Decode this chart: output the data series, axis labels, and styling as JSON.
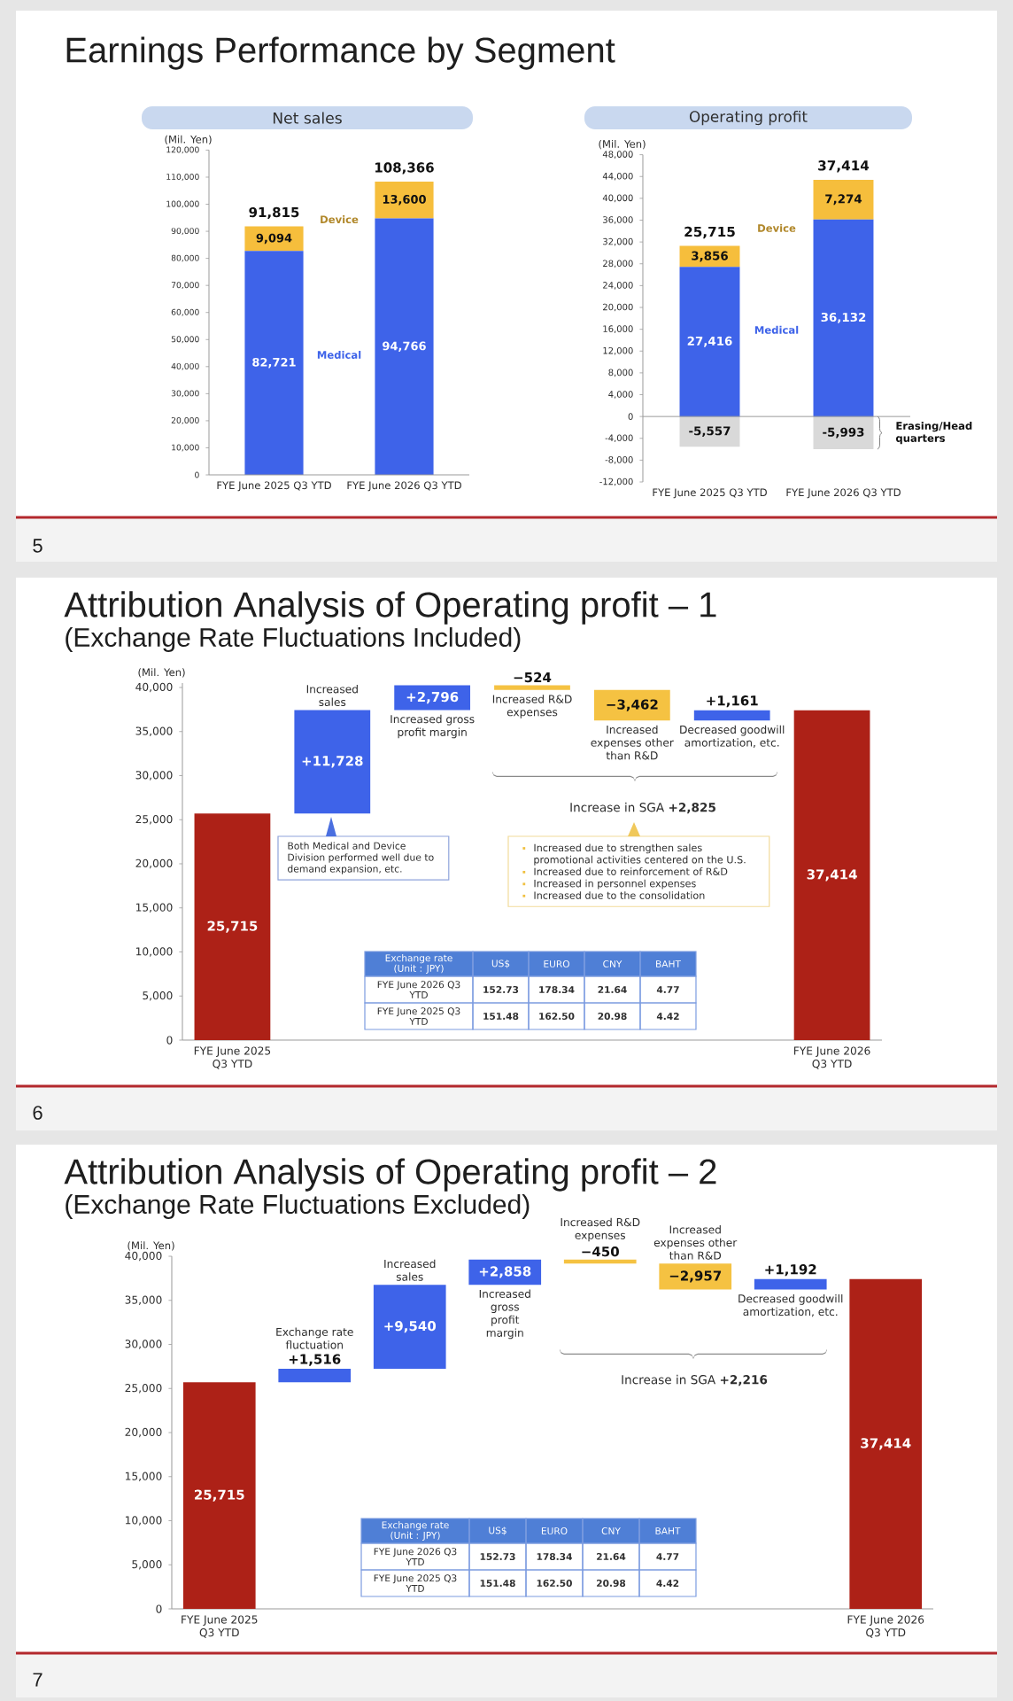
{
  "chart_data": [
    {
      "type": "bar",
      "stacked": true,
      "title": "Net sales",
      "ylabel": "(Mil. Yen)",
      "categories": [
        "FYE June 2025 Q3 YTD",
        "FYE June 2026 Q3 YTD"
      ],
      "series": [
        {
          "name": "Medical",
          "color": "#3e63e9",
          "values": [
            82721,
            94766
          ],
          "value_labels": [
            "82,721",
            "94,766"
          ]
        },
        {
          "name": "Device",
          "color": "#f6be3c",
          "values": [
            9094,
            13600
          ],
          "value_labels": [
            "9,094",
            "13,600"
          ]
        }
      ],
      "totals": [
        "91,815",
        "108,366"
      ],
      "ylim": [
        0,
        120000
      ],
      "yticks": [
        0,
        {
          "value": 10000,
          "label": "10,000"
        },
        {
          "value": 20000,
          "label": "20,000"
        },
        {
          "value": 30000,
          "label": "30,000"
        },
        {
          "value": 40000,
          "label": "40,000"
        },
        {
          "value": 50000,
          "label": "50,000"
        },
        {
          "value": 60000,
          "label": "60,000"
        },
        {
          "value": 70000,
          "label": "70,000"
        },
        {
          "value": 80000,
          "label": "80,000"
        },
        {
          "value": 90000,
          "label": "90,000"
        },
        {
          "value": 100000,
          "label": "100,000"
        },
        {
          "value": 110000,
          "label": "110,000"
        },
        {
          "value": 120000,
          "label": "120,000"
        }
      ],
      "annotations": [
        "Earnings Performance by Segment",
        "5"
      ]
    },
    {
      "type": "bar",
      "stacked": true,
      "title": "Operating profit",
      "ylabel": "(Mil. Yen)",
      "categories": [
        "FYE June 2025 Q3 YTD",
        "FYE June 2026 Q3 YTD"
      ],
      "series": [
        {
          "name": "Medical",
          "color": "#3e63e9",
          "values": [
            27416,
            36132
          ],
          "value_labels": [
            "27,416",
            "36,132"
          ]
        },
        {
          "name": "Device",
          "color": "#f6be3c",
          "values": [
            3856,
            7274
          ],
          "value_labels": [
            "3,856",
            "7,274"
          ]
        },
        {
          "name": "Erasing/Head quarters",
          "color": "#d9d9d9",
          "values": [
            -5557,
            -5993
          ],
          "value_labels": [
            "-5,557",
            "-5,993"
          ]
        }
      ],
      "totals": [
        "25,715",
        "37,414"
      ],
      "ylim": [
        -12000,
        48000
      ],
      "yticks": [
        {
          "value": -12000,
          "label": "-12,000"
        },
        {
          "value": -8000,
          "label": "-8,000"
        },
        {
          "value": -4000,
          "label": "-4,000"
        },
        0,
        {
          "value": 4000,
          "label": "4,000"
        },
        {
          "value": 8000,
          "label": "8,000"
        },
        {
          "value": 12000,
          "label": "12,000"
        },
        {
          "value": 16000,
          "label": "16,000"
        },
        {
          "value": 20000,
          "label": "20,000"
        },
        {
          "value": 24000,
          "label": "24,000"
        },
        {
          "value": 28000,
          "label": "28,000"
        },
        {
          "value": 32000,
          "label": "32,000"
        },
        {
          "value": 36000,
          "label": "36,000"
        },
        {
          "value": 40000,
          "label": "40,000"
        },
        {
          "value": 44000,
          "label": "44,000"
        },
        {
          "value": 48000,
          "label": "48,000"
        }
      ]
    },
    {
      "type": "bar",
      "title": "Attribution Analysis of Operating profit – 1",
      "subtitle": "(Exchange Rate Fluctuations Included)",
      "ylabel": "(Mil. Yen)",
      "categories": [
        "FYE June 2025 Q3 YTD",
        "Increased sales",
        "Increased gross profit margin",
        "Increased R&D expenses",
        "Increased expenses other than R&D",
        "Decreased goodwill amortization, etc.",
        "FYE June 2026 Q3 YTD"
      ],
      "values": [
        25715,
        11728,
        2796,
        -524,
        -3462,
        1161,
        37414
      ],
      "base": [
        0,
        25715,
        37443,
        40239,
        39715,
        36253,
        0
      ],
      "colors": [
        "#ad2117",
        "#3e63e9",
        "#3e63e9",
        "#f5c242",
        "#f5c242",
        "#3e63e9",
        "#ad2117"
      ],
      "value_labels": [
        "25,715",
        "+11,728",
        "+2,796",
        "−524",
        "−3,462",
        "+1,161",
        "37,414"
      ],
      "ylim": [
        0,
        40500
      ],
      "yticks": [
        0,
        {
          "value": 5000,
          "label": "5,000"
        },
        {
          "value": 10000,
          "label": "10,000"
        },
        {
          "value": 15000,
          "label": "15,000"
        },
        {
          "value": 20000,
          "label": "20,000"
        },
        {
          "value": 25000,
          "label": "25,000"
        },
        {
          "value": 30000,
          "label": "30,000"
        },
        {
          "value": 35000,
          "label": "35,000"
        },
        {
          "value": 40000,
          "label": "40,000"
        }
      ],
      "annotations": [
        "6",
        "Both Medical and Device Division performed well due to demand expansion, etc.",
        "Increase in SGA **+2,825**",
        "Increased due to strengthen sales promotional activities centered on the U.S.",
        "Increased due to reinforcement of R&D",
        "Increased in personnel expenses",
        "Increased due to the consolidation",
        "Exchange rate (Unit : JPY)",
        "US$",
        "EURO",
        "CNY",
        "BAHT",
        "FYE June 2026 Q3 YTD",
        "152.73",
        "178.34",
        "21.64",
        "4.77",
        "FYE June 2025 Q3 YTD",
        "151.48",
        "162.50",
        "20.98",
        "4.42"
      ]
    },
    {
      "type": "bar",
      "title": "Attribution Analysis of Operating profit – 2",
      "subtitle": "(Exchange Rate Fluctuations Excluded)",
      "ylabel": "(Mil. Yen)",
      "categories": [
        "FYE June 2025 Q3 YTD",
        "Exchange rate fluctuation",
        "Increased sales",
        "Increased gross profit margin",
        "Increased R&D expenses",
        "Increased expenses other than R&D",
        "Decreased goodwill amortization, etc.",
        "FYE June 2026 Q3 YTD"
      ],
      "values": [
        25715,
        1516,
        9540,
        2858,
        -450,
        -2957,
        1192,
        37414
      ],
      "base": [
        0,
        25715,
        27231,
        36771,
        39629,
        39179,
        36222,
        0
      ],
      "colors": [
        "#ad2117",
        "#3e63e9",
        "#3e63e9",
        "#3e63e9",
        "#f5c242",
        "#f5c242",
        "#3e63e9",
        "#ad2117"
      ],
      "value_labels": [
        "25,715",
        "+1,516",
        "+9,540",
        "+2,858",
        "−450",
        "−2,957",
        "+1,192",
        "37,414"
      ],
      "ylim": [
        0,
        40000
      ],
      "yticks": [
        0,
        {
          "value": 5000,
          "label": "5,000"
        },
        {
          "value": 10000,
          "label": "10,000"
        },
        {
          "value": 15000,
          "label": "15,000"
        },
        {
          "value": 20000,
          "label": "20,000"
        },
        {
          "value": 25000,
          "label": "25,000"
        },
        {
          "value": 30000,
          "label": "30,000"
        },
        {
          "value": 35000,
          "label": "35,000"
        },
        {
          "value": 40000,
          "label": "40,000"
        }
      ],
      "annotations": [
        "7",
        "Increase in SGA **+2,216**",
        "Exchange rate (Unit : JPY)",
        "US$",
        "EURO",
        "CNY",
        "BAHT",
        "FYE June 2026 Q3 YTD",
        "152.73",
        "178.34",
        "21.64",
        "4.77",
        "FYE June 2025 Q3 YTD",
        "151.48",
        "162.50",
        "20.98",
        "4.42"
      ]
    }
  ]
}
